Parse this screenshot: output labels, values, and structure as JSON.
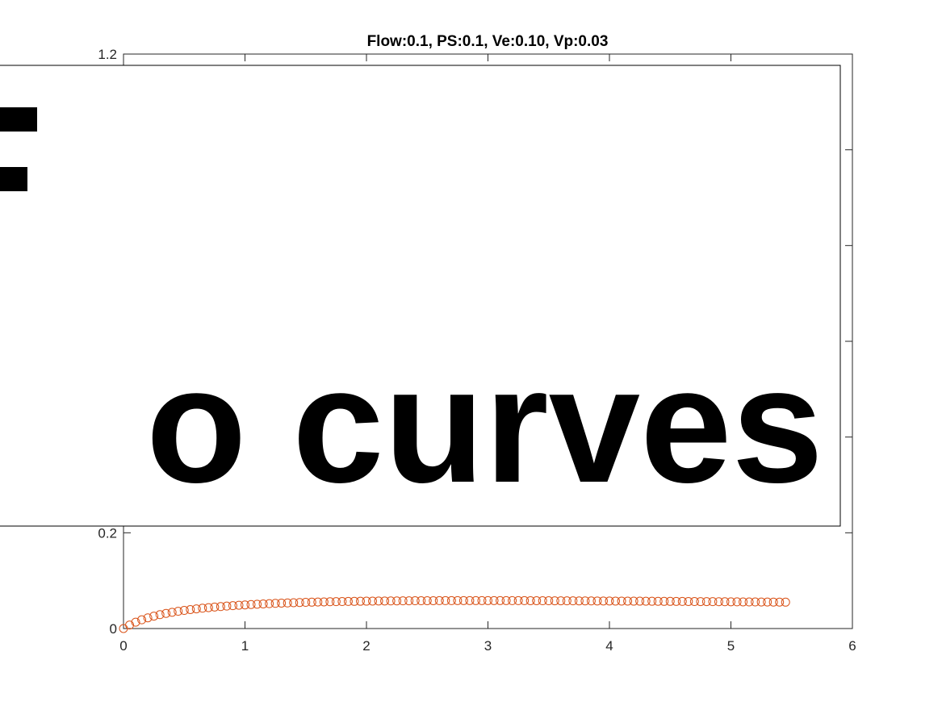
{
  "chart_data": {
    "type": "scatter",
    "title": "Flow:0.1, PS:0.1, Ve:0.10, Vp:0.03",
    "xlabel": "",
    "ylabel": "",
    "xlim": [
      0,
      6
    ],
    "ylim": [
      0,
      1.2
    ],
    "x_ticks": [
      "0",
      "1",
      "2",
      "3",
      "4",
      "5",
      "6"
    ],
    "y_ticks_visible": [
      "0",
      "0.2",
      "1.2"
    ],
    "grid": false,
    "marker": "open-circle",
    "marker_color": "#d95319",
    "series": [
      {
        "x_start": 0,
        "x_step": 0.05,
        "count": 110,
        "values": [
          0.0,
          0.0073,
          0.0133,
          0.0183,
          0.0224,
          0.026,
          0.029,
          0.0317,
          0.034,
          0.0361,
          0.0379,
          0.0396,
          0.0411,
          0.0425,
          0.0437,
          0.0449,
          0.0459,
          0.0469,
          0.0478,
          0.0487,
          0.0494,
          0.0502,
          0.0508,
          0.0515,
          0.052,
          0.0526,
          0.0531,
          0.0535,
          0.054,
          0.0544,
          0.0547,
          0.0551,
          0.0554,
          0.0557,
          0.056,
          0.0562,
          0.0564,
          0.0566,
          0.0568,
          0.057,
          0.0572,
          0.0573,
          0.0575,
          0.0576,
          0.0577,
          0.0578,
          0.0579,
          0.058,
          0.0581,
          0.0581,
          0.0582,
          0.0582,
          0.0583,
          0.0583,
          0.0583,
          0.0584,
          0.0584,
          0.0584,
          0.0584,
          0.0584,
          0.0584,
          0.0584,
          0.0584,
          0.0584,
          0.0583,
          0.0583,
          0.0583,
          0.0582,
          0.0582,
          0.0581,
          0.0581,
          0.058,
          0.058,
          0.0579,
          0.0579,
          0.0578,
          0.0578,
          0.0577,
          0.0576,
          0.0576,
          0.0575,
          0.0574,
          0.0574,
          0.0573,
          0.0572,
          0.0572,
          0.0571,
          0.057,
          0.0569,
          0.0568,
          0.0568,
          0.0567,
          0.0566,
          0.0565,
          0.0564,
          0.0563,
          0.0563,
          0.0562,
          0.0561,
          0.056,
          0.0559,
          0.0558,
          0.0557,
          0.0556,
          0.0556,
          0.0555,
          0.0554,
          0.0553,
          0.0552,
          0.0551
        ]
      }
    ],
    "overlay": {
      "text": "o curves",
      "fill": "#ffffff",
      "edge": "#000000"
    }
  }
}
